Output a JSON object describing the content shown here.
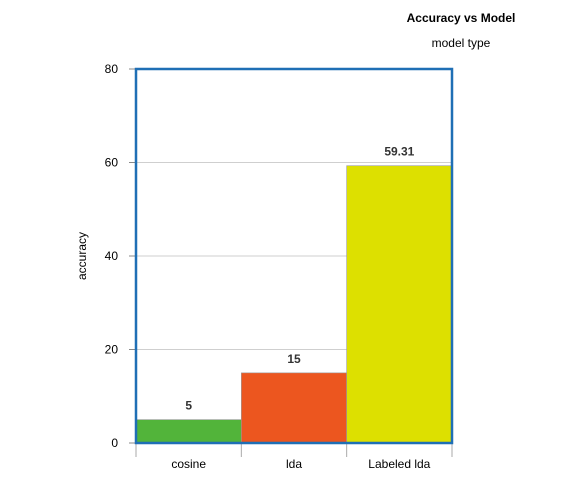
{
  "chart_data": {
    "type": "bar",
    "title": "Accuracy vs Model",
    "subtitle": "model type",
    "xlabel": "",
    "ylabel": "accuracy",
    "categories": [
      "cosine",
      "lda",
      "Labeled lda"
    ],
    "values": [
      5,
      15,
      59.31
    ],
    "data_labels": [
      "5",
      "15",
      "59.31"
    ],
    "colors": [
      "#52b43a",
      "#ec561f",
      "#dde000"
    ],
    "ylim": [
      0,
      80
    ],
    "yticks": [
      0,
      20,
      40,
      60,
      80
    ],
    "grid": true,
    "legend": "none",
    "frame_color": "#1f6fb5"
  }
}
